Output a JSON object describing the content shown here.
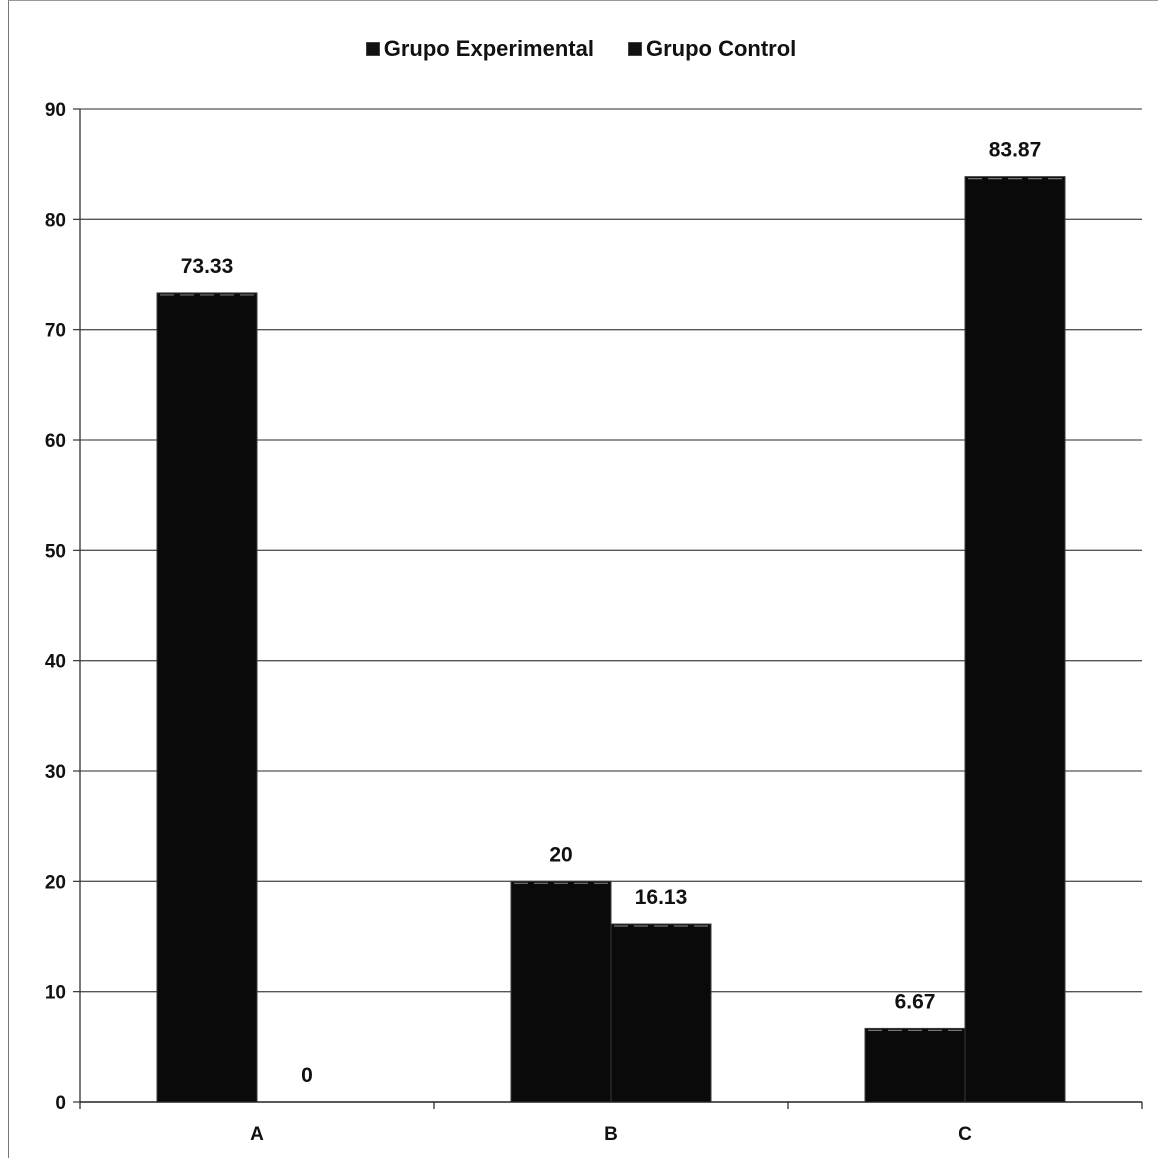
{
  "chart_data": {
    "type": "bar",
    "categories": [
      "A",
      "B",
      "C"
    ],
    "series": [
      {
        "name": "Grupo Experimental",
        "values": [
          73.33,
          20,
          6.67
        ],
        "labels": [
          "73.33",
          "20",
          "6.67"
        ],
        "color": "#0a0a0a"
      },
      {
        "name": "Grupo Control",
        "values": [
          0,
          16.13,
          83.87
        ],
        "labels": [
          "0",
          "16.13",
          "83.87"
        ],
        "color": "#0a0a0a"
      }
    ],
    "ylim": [
      0,
      90
    ],
    "yticks": [
      0,
      10,
      20,
      30,
      40,
      50,
      60,
      70,
      80,
      90
    ],
    "ytick_labels": [
      "0",
      "10",
      "20",
      "30",
      "40",
      "50",
      "60",
      "70",
      "80",
      "90"
    ],
    "grid": true,
    "legend_position": "top"
  }
}
